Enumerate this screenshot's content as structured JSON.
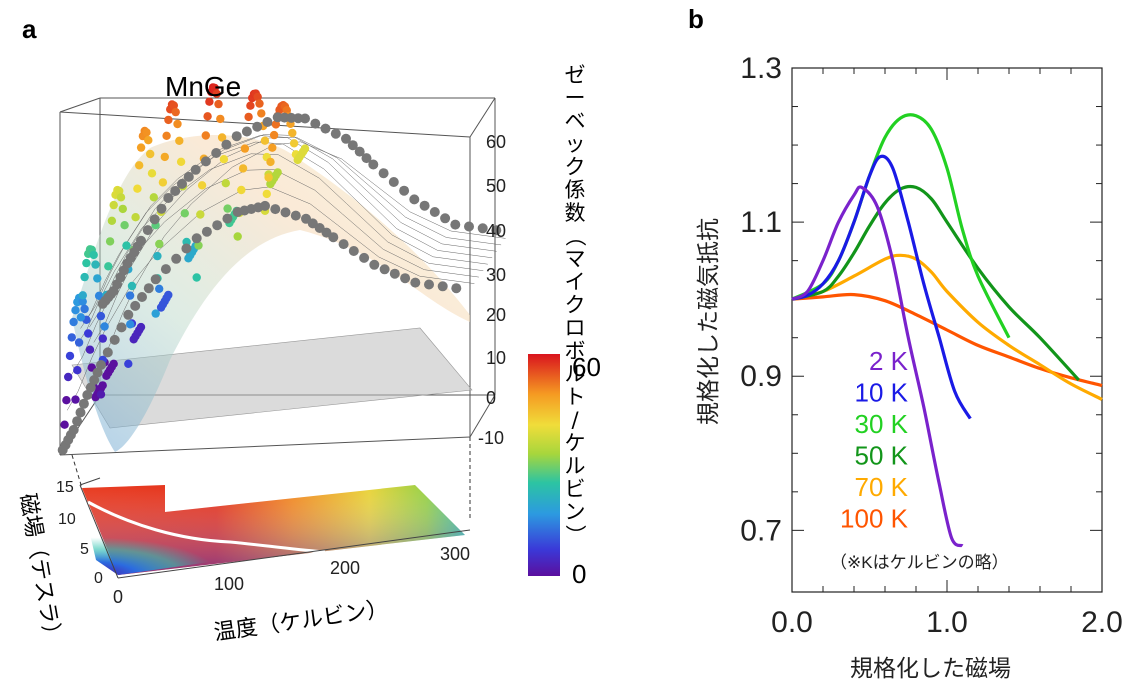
{
  "panel_a": {
    "label": "a",
    "title": "MnGe",
    "z_axis_title": "ゼーベック係数（マイクロボルト/ケルビン）",
    "x_axis_title": "温度（ケルビン）",
    "y_axis_title": "磁場（テスラ）",
    "colorbar_ticks": [
      "60",
      "0"
    ],
    "colors": {
      "gray_curve": "#777777",
      "zero_plane": "#bdbdbd",
      "box": "#555555"
    }
  },
  "panel_b": {
    "label": "b",
    "xlabel": "規格化した磁場",
    "ylabel": "規格化した磁気抵抗",
    "note": "（※Kはケルビンの略）"
  },
  "chart_data": [
    {
      "type": "scatter",
      "title": "MnGe",
      "xlabel": "温度（ケルビン）",
      "ylabel": "磁場（テスラ）",
      "zlabel": "ゼーベック係数（マイクロボルト/ケルビン）",
      "x_ticks": [
        "0",
        "100",
        "200",
        "300"
      ],
      "y_ticks": [
        "0",
        "5",
        "10",
        "15"
      ],
      "z_ticks": [
        "-10",
        "0",
        "10",
        "20",
        "30",
        "40",
        "50",
        "60"
      ],
      "xlim": [
        0,
        300
      ],
      "ylim": [
        0,
        15
      ],
      "zlim": [
        -10,
        60
      ],
      "colorbar": {
        "min": 0,
        "max": 60
      },
      "zero_field_curve": {
        "T": [
          2,
          10,
          20,
          30,
          50,
          70,
          100,
          130,
          150,
          180,
          200,
          230,
          260,
          300
        ],
        "S": [
          -9,
          -5,
          2,
          8,
          18,
          25,
          33,
          38,
          39,
          36,
          32,
          26,
          22,
          20
        ]
      },
      "field_sweeps": [
        {
          "T": 2,
          "S_peak": 18
        },
        {
          "T": 10,
          "S_peak": 28
        },
        {
          "T": 30,
          "S_peak": 40
        },
        {
          "T": 50,
          "S_peak": 52
        },
        {
          "T": 70,
          "S_peak": 57
        },
        {
          "T": 100,
          "S_peak": 60
        },
        {
          "T": 130,
          "S_peak": 58
        },
        {
          "T": 150,
          "S_peak": 55
        }
      ],
      "boundary_curve": {
        "T": [
          0,
          25,
          50,
          75,
          100,
          125,
          150,
          175
        ],
        "B": [
          12.5,
          11,
          9.5,
          8.3,
          7.5,
          6.9,
          6.2,
          5.6
        ]
      }
    },
    {
      "type": "line",
      "xlabel": "規格化した磁場",
      "ylabel": "規格化した磁気抵抗",
      "xlim": [
        0,
        2.0
      ],
      "ylim": [
        0.62,
        1.3
      ],
      "x_ticks": [
        "0.0",
        "1.0",
        "2.0"
      ],
      "y_ticks": [
        "0.7",
        "0.9",
        "1.1",
        "1.3"
      ],
      "series": [
        {
          "name": "2 K",
          "color": "#7a22cc",
          "x": [
            0,
            0.1,
            0.2,
            0.3,
            0.4,
            0.45,
            0.55,
            0.65,
            0.75,
            0.85,
            0.95,
            1.03,
            1.1
          ],
          "y": [
            1.0,
            1.01,
            1.05,
            1.1,
            1.135,
            1.145,
            1.12,
            1.05,
            0.95,
            0.86,
            0.76,
            0.69,
            0.68
          ]
        },
        {
          "name": "10 K",
          "color": "#1a1ae6",
          "x": [
            0,
            0.1,
            0.2,
            0.3,
            0.4,
            0.5,
            0.57,
            0.65,
            0.75,
            0.85,
            0.95,
            1.05,
            1.15
          ],
          "y": [
            1.0,
            1.005,
            1.02,
            1.05,
            1.1,
            1.16,
            1.185,
            1.17,
            1.1,
            1.02,
            0.95,
            0.88,
            0.845
          ]
        },
        {
          "name": "30 K",
          "color": "#22d122",
          "x": [
            0,
            0.2,
            0.3,
            0.4,
            0.5,
            0.6,
            0.7,
            0.8,
            0.9,
            1.0,
            1.1,
            1.2,
            1.4
          ],
          "y": [
            1.0,
            1.02,
            1.05,
            1.1,
            1.16,
            1.21,
            1.235,
            1.238,
            1.22,
            1.17,
            1.09,
            1.03,
            0.95
          ]
        },
        {
          "name": "50 K",
          "color": "#12951a",
          "x": [
            0,
            0.2,
            0.3,
            0.4,
            0.5,
            0.6,
            0.7,
            0.8,
            0.9,
            1.0,
            1.2,
            1.4,
            1.6,
            1.85
          ],
          "y": [
            1.0,
            1.01,
            1.03,
            1.06,
            1.095,
            1.125,
            1.143,
            1.145,
            1.13,
            1.1,
            1.04,
            0.99,
            0.95,
            0.895
          ]
        },
        {
          "name": "70 K",
          "color": "#ffaa00",
          "x": [
            0,
            0.2,
            0.4,
            0.6,
            0.7,
            0.8,
            0.9,
            1.0,
            1.2,
            1.4,
            1.6,
            1.8,
            2.0
          ],
          "y": [
            1.0,
            1.01,
            1.03,
            1.052,
            1.057,
            1.052,
            1.035,
            1.01,
            0.97,
            0.94,
            0.915,
            0.89,
            0.87
          ]
        },
        {
          "name": "100 K",
          "color": "#ff5500",
          "x": [
            0,
            0.2,
            0.4,
            0.6,
            0.8,
            1.0,
            1.2,
            1.4,
            1.6,
            1.8,
            2.0
          ],
          "y": [
            1.0,
            1.003,
            1.006,
            0.998,
            0.98,
            0.96,
            0.94,
            0.925,
            0.91,
            0.898,
            0.888
          ]
        }
      ]
    }
  ]
}
